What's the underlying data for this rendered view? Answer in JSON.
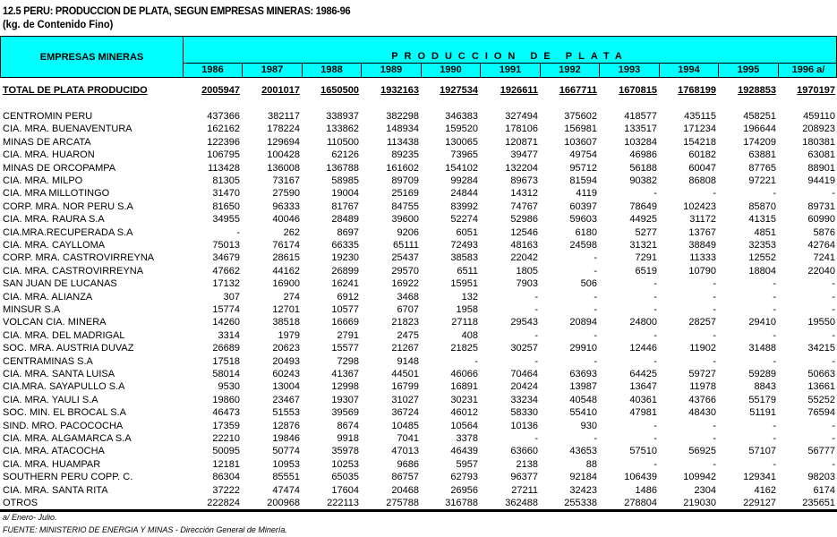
{
  "title": "12.5  PERU: PRODUCCION DE PLATA, SEGUN EMPRESAS MINERAS: 1986-96",
  "subtitle": "(kg. de Contenido Fino)",
  "header": {
    "row_label": "EMPRESAS  MINERAS",
    "group_label": "PRODUCCION  DE  PLATA",
    "years": [
      "1986",
      "1987",
      "1988",
      "1989",
      "1990",
      "1991",
      "1992",
      "1993",
      "1994",
      "1995",
      "1996 a/"
    ]
  },
  "header_color": "#00ffff",
  "total": {
    "name": "TOTAL DE PLATA PRODUCIDO",
    "values": [
      "2005947",
      "2001017",
      "1650500",
      "1932163",
      "1927534",
      "1926611",
      "1667711",
      "1670815",
      "1768199",
      "1928853",
      "1970197"
    ]
  },
  "rows": [
    {
      "name": "CENTROMIN PERU",
      "values": [
        "437366",
        "382117",
        "338937",
        "382298",
        "346383",
        "327494",
        "375602",
        "418577",
        "435115",
        "458251",
        "459110"
      ]
    },
    {
      "name": "CIA. MRA. BUENAVENTURA",
      "values": [
        "162162",
        "178224",
        "133862",
        "148934",
        "159520",
        "178106",
        "156981",
        "133517",
        "171234",
        "196644",
        "208923"
      ]
    },
    {
      "name": "MINAS DE ARCATA",
      "values": [
        "122396",
        "129694",
        "110500",
        "113438",
        "130065",
        "120871",
        "103607",
        "103284",
        "154218",
        "174209",
        "180381"
      ]
    },
    {
      "name": "CIA. MRA. HUARON",
      "values": [
        "106795",
        "100428",
        "62126",
        "89235",
        "73965",
        "39477",
        "49754",
        "46986",
        "60182",
        "63881",
        "63081"
      ]
    },
    {
      "name": "MINAS DE ORCOPAMPA",
      "values": [
        "113428",
        "136008",
        "136788",
        "161602",
        "154102",
        "132204",
        "95712",
        "56188",
        "60047",
        "87765",
        "88901"
      ]
    },
    {
      "name": "CIA. MRA. MILPO",
      "values": [
        "81305",
        "73167",
        "58985",
        "89709",
        "99284",
        "89673",
        "81594",
        "90382",
        "86808",
        "97221",
        "94419"
      ]
    },
    {
      "name": "CIA. MRA MILLOTINGO",
      "values": [
        "31470",
        "27590",
        "19004",
        "25169",
        "24844",
        "14312",
        "4119",
        "-",
        "-",
        "-",
        "-"
      ]
    },
    {
      "name": "CORP. MRA. NOR PERU S.A",
      "values": [
        "81650",
        "96333",
        "81767",
        "84755",
        "83992",
        "74767",
        "60397",
        "78649",
        "102423",
        "85870",
        "89731"
      ]
    },
    {
      "name": "CIA. MRA. RAURA S.A",
      "values": [
        "34955",
        "40046",
        "28489",
        "39600",
        "52274",
        "52986",
        "59603",
        "44925",
        "31172",
        "41315",
        "60990"
      ]
    },
    {
      "name": "CIA.MRA.RECUPERADA S.A",
      "values": [
        "-",
        "262",
        "8697",
        "9206",
        "6051",
        "12546",
        "6180",
        "5277",
        "13767",
        "4851",
        "5876"
      ]
    },
    {
      "name": "CIA. MRA. CAYLLOMA",
      "values": [
        "75013",
        "76174",
        "66335",
        "65111",
        "72493",
        "48163",
        "24598",
        "31321",
        "38849",
        "32353",
        "42764"
      ]
    },
    {
      "name": "CORP. MRA. CASTROVIRREYNA",
      "values": [
        "34679",
        "28615",
        "19230",
        "25437",
        "38583",
        "22042",
        "-",
        "7291",
        "11333",
        "12552",
        "7241"
      ]
    },
    {
      "name": "CIA. MRA. CASTROVIRREYNA",
      "values": [
        "47662",
        "44162",
        "26899",
        "29570",
        "6511",
        "1805",
        "-",
        "6519",
        "10790",
        "18804",
        "22040"
      ]
    },
    {
      "name": "SAN JUAN DE LUCANAS",
      "values": [
        "17132",
        "16900",
        "16241",
        "16922",
        "15951",
        "7903",
        "506",
        "-",
        "-",
        "-",
        "-"
      ]
    },
    {
      "name": "CIA. MRA. ALIANZA",
      "values": [
        "307",
        "274",
        "6912",
        "3468",
        "132",
        "-",
        "-",
        "-",
        "-",
        "-",
        "-"
      ]
    },
    {
      "name": "MINSUR S.A",
      "values": [
        "15774",
        "12701",
        "10577",
        "6707",
        "1958",
        "-",
        "-",
        "-",
        "-",
        "-",
        "-"
      ]
    },
    {
      "name": "VOLCAN CIA. MINERA",
      "values": [
        "14260",
        "38518",
        "16669",
        "21823",
        "27118",
        "29543",
        "20894",
        "24800",
        "28257",
        "29410",
        "19550"
      ]
    },
    {
      "name": "CIA. MRA. DEL MADRIGAL",
      "values": [
        "3314",
        "1979",
        "2791",
        "2475",
        "408",
        "-",
        "-",
        "-",
        "-",
        "-",
        "-"
      ]
    },
    {
      "name": "SOC. MRA. AUSTRIA DUVAZ",
      "values": [
        "26689",
        "20623",
        "15577",
        "21267",
        "21825",
        "30257",
        "29910",
        "12446",
        "11902",
        "31488",
        "34215"
      ]
    },
    {
      "name": "CENTRAMINAS S.A",
      "values": [
        "17518",
        "20493",
        "7298",
        "9148",
        "-",
        "-",
        "-",
        "-",
        "-",
        "-",
        "-"
      ]
    },
    {
      "name": "CIA. MRA. SANTA LUISA",
      "values": [
        "58014",
        "60243",
        "41367",
        "44501",
        "46066",
        "70464",
        "63693",
        "64425",
        "59727",
        "59289",
        "50663"
      ]
    },
    {
      "name": "CIA.MRA. SAYAPULLO S.A",
      "values": [
        "9530",
        "13004",
        "12998",
        "16799",
        "16891",
        "20424",
        "13987",
        "13647",
        "11978",
        "8843",
        "13661"
      ]
    },
    {
      "name": "CIA. MRA. YAULI S.A",
      "values": [
        "19860",
        "23467",
        "19307",
        "31027",
        "30231",
        "33234",
        "40548",
        "40361",
        "43766",
        "55179",
        "55252"
      ]
    },
    {
      "name": "SOC. MIN. EL BROCAL S.A",
      "values": [
        "46473",
        "51553",
        "39569",
        "36724",
        "46012",
        "58330",
        "55410",
        "47981",
        "48430",
        "51191",
        "76594"
      ]
    },
    {
      "name": "SIND. MRO. PACOCOCHA",
      "values": [
        "17359",
        "12876",
        "8674",
        "10485",
        "10564",
        "10136",
        "930",
        "-",
        "-",
        "-",
        "-"
      ]
    },
    {
      "name": "CIA. MRA. ALGAMARCA S.A",
      "values": [
        "22210",
        "19846",
        "9918",
        "7041",
        "3378",
        "-",
        "-",
        "-",
        "-",
        "-",
        "-"
      ]
    },
    {
      "name": "CIA. MRA. ATACOCHA",
      "values": [
        "50095",
        "50774",
        "35978",
        "47013",
        "46439",
        "63660",
        "43653",
        "57510",
        "56925",
        "57107",
        "56777"
      ]
    },
    {
      "name": "CIA. MRA. HUAMPAR",
      "values": [
        "12181",
        "10953",
        "10253",
        "9686",
        "5957",
        "2138",
        "88",
        "-",
        "-",
        "-",
        "-"
      ]
    },
    {
      "name": "SOUTHERN PERU COPP. C.",
      "values": [
        "86304",
        "85551",
        "65035",
        "86757",
        "62793",
        "96377",
        "92184",
        "106439",
        "109942",
        "129341",
        "98203"
      ]
    },
    {
      "name": "CIA. MRA. SANTA RITA",
      "values": [
        "37222",
        "47474",
        "17604",
        "20468",
        "26956",
        "27211",
        "32423",
        "1486",
        "2304",
        "4162",
        "6174"
      ]
    },
    {
      "name": "OTROS",
      "values": [
        "222824",
        "200968",
        "222113",
        "275788",
        "316788",
        "362488",
        "255338",
        "278804",
        "219030",
        "229127",
        "235651"
      ]
    }
  ],
  "footnotes": [
    "a/ Enero- Julio.",
    "FUENTE: MINISTERIO DE ENERGIA Y MINAS - Dirección General de Minería."
  ]
}
